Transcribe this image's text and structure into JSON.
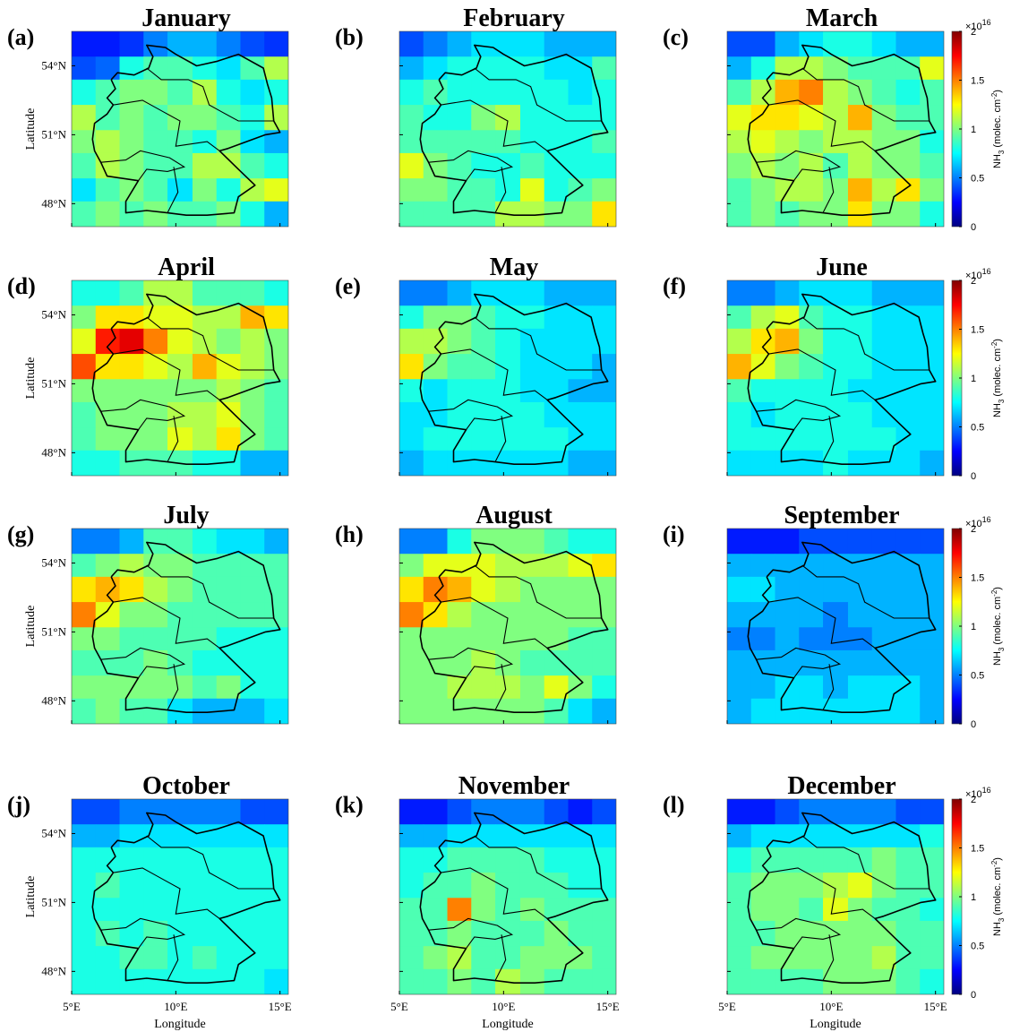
{
  "chart_data": {
    "type": "heatmap",
    "colormap": "jet",
    "clim": [
      0,
      2
    ],
    "x_bins": [
      5,
      6.15,
      7.3,
      8.45,
      9.6,
      10.8,
      11.95,
      13.1,
      14.25,
      15.4
    ],
    "y_bins": [
      47,
      48.1,
      49.1,
      50.2,
      51.2,
      52.3,
      53.4,
      54.4,
      55.5
    ],
    "xlim": [
      5,
      15.4
    ],
    "ylim": [
      47,
      55.5
    ],
    "xticks": [
      {
        "value": 5,
        "label": "5°E"
      },
      {
        "value": 10,
        "label": "10°E"
      },
      {
        "value": 15,
        "label": "15°E"
      }
    ],
    "yticks": [
      {
        "value": 48,
        "label": "48°N"
      },
      {
        "value": 51,
        "label": "51°N"
      },
      {
        "value": 54,
        "label": "54°N"
      }
    ],
    "xlabel": "Longitude",
    "ylabel": "Latitude",
    "colorbar": {
      "ticks": [
        0,
        0.5,
        1,
        1.5,
        2
      ],
      "exponent_base": "×10",
      "exponent": "16",
      "label_parts": [
        "NH",
        "3",
        " (molec. cm",
        "-2",
        ")"
      ]
    },
    "panels": [
      {
        "label": "(a)",
        "title": "January",
        "values": [
          [
            0.3,
            0.3,
            0.35,
            0.5,
            0.6,
            0.6,
            0.5,
            0.4,
            0.35
          ],
          [
            0.4,
            0.45,
            0.8,
            0.9,
            0.9,
            0.8,
            0.7,
            0.9,
            1.1
          ],
          [
            0.8,
            0.9,
            1.0,
            1.0,
            0.9,
            1.1,
            0.8,
            0.7,
            0.8
          ],
          [
            1.1,
            0.9,
            1.0,
            0.9,
            1.0,
            1.0,
            0.9,
            0.8,
            1.1
          ],
          [
            1.0,
            1.1,
            1.0,
            0.9,
            0.9,
            0.8,
            1.0,
            0.7,
            0.6
          ],
          [
            0.9,
            1.1,
            1.0,
            0.9,
            0.9,
            1.1,
            1.1,
            0.9,
            0.8
          ],
          [
            0.7,
            0.9,
            1.0,
            0.9,
            0.7,
            1.0,
            0.8,
            1.1,
            1.2
          ],
          [
            0.9,
            1.0,
            0.9,
            1.0,
            0.9,
            0.9,
            1.0,
            0.8,
            0.6
          ]
        ]
      },
      {
        "label": "(b)",
        "title": "February",
        "values": [
          [
            0.4,
            0.5,
            0.6,
            0.7,
            0.7,
            0.7,
            0.6,
            0.6,
            0.6
          ],
          [
            0.6,
            0.7,
            0.8,
            0.8,
            0.8,
            0.8,
            0.7,
            0.7,
            0.9
          ],
          [
            0.8,
            0.9,
            0.8,
            0.8,
            0.8,
            0.8,
            0.8,
            0.7,
            0.8
          ],
          [
            0.9,
            0.8,
            0.8,
            1.0,
            1.1,
            0.8,
            0.8,
            0.8,
            0.8
          ],
          [
            0.9,
            0.9,
            0.9,
            0.9,
            0.9,
            0.8,
            0.8,
            0.8,
            0.9
          ],
          [
            1.2,
            1.0,
            0.9,
            0.8,
            0.8,
            0.9,
            0.8,
            0.8,
            0.8
          ],
          [
            1.0,
            1.0,
            0.9,
            0.9,
            0.8,
            1.2,
            0.8,
            0.9,
            1.0
          ],
          [
            0.9,
            0.9,
            0.9,
            0.9,
            1.1,
            1.1,
            1.0,
            1.0,
            1.3
          ]
        ]
      },
      {
        "label": "(c)",
        "title": "March",
        "values": [
          [
            0.4,
            0.4,
            0.6,
            0.7,
            0.8,
            0.8,
            0.7,
            0.6,
            0.6
          ],
          [
            0.6,
            0.8,
            1.1,
            1.1,
            1.0,
            0.9,
            0.9,
            0.9,
            1.2
          ],
          [
            0.9,
            1.1,
            1.4,
            1.5,
            1.1,
            1.0,
            0.9,
            0.8,
            0.9
          ],
          [
            1.2,
            1.3,
            1.3,
            1.2,
            1.1,
            1.4,
            1.0,
            0.9,
            0.9
          ],
          [
            1.1,
            1.2,
            1.1,
            1.0,
            1.1,
            1.1,
            1.0,
            1.0,
            0.8
          ],
          [
            1.0,
            1.1,
            1.0,
            1.1,
            0.9,
            1.1,
            1.0,
            1.0,
            0.9
          ],
          [
            0.9,
            1.0,
            1.1,
            1.1,
            1.0,
            1.4,
            1.1,
            1.3,
            1.0
          ],
          [
            0.9,
            1.0,
            0.9,
            1.0,
            1.0,
            1.3,
            1.0,
            1.0,
            0.8
          ]
        ]
      },
      {
        "label": "(d)",
        "title": "April",
        "values": [
          [
            0.8,
            0.8,
            0.9,
            1.1,
            1.1,
            0.9,
            0.9,
            0.9,
            0.8
          ],
          [
            1.0,
            1.3,
            1.3,
            1.2,
            1.2,
            1.1,
            1.1,
            1.4,
            1.3
          ],
          [
            1.2,
            1.7,
            1.8,
            1.5,
            1.2,
            1.1,
            1.0,
            1.1,
            1.0
          ],
          [
            1.6,
            1.3,
            1.3,
            1.2,
            1.1,
            1.4,
            1.2,
            1.1,
            1.0
          ],
          [
            1.0,
            1.0,
            1.0,
            1.0,
            1.0,
            1.0,
            1.1,
            1.0,
            0.9
          ],
          [
            0.9,
            1.0,
            1.0,
            1.0,
            1.1,
            1.1,
            1.2,
            1.0,
            0.9
          ],
          [
            0.9,
            1.0,
            1.0,
            1.0,
            1.2,
            1.1,
            1.3,
            1.0,
            0.9
          ],
          [
            0.8,
            0.8,
            0.9,
            0.9,
            0.9,
            0.8,
            0.8,
            0.6,
            0.6
          ]
        ]
      },
      {
        "label": "(e)",
        "title": "May",
        "values": [
          [
            0.5,
            0.5,
            0.6,
            0.7,
            0.7,
            0.7,
            0.6,
            0.6,
            0.6
          ],
          [
            0.8,
            1.0,
            1.0,
            0.9,
            0.8,
            0.8,
            0.7,
            0.7,
            0.7
          ],
          [
            1.1,
            1.1,
            1.0,
            0.9,
            0.8,
            0.7,
            0.7,
            0.7,
            0.7
          ],
          [
            1.3,
            1.0,
            0.9,
            0.9,
            0.8,
            0.7,
            0.7,
            0.7,
            0.6
          ],
          [
            0.8,
            0.7,
            0.8,
            0.8,
            0.8,
            0.7,
            0.7,
            0.6,
            0.6
          ],
          [
            0.7,
            0.7,
            0.8,
            0.8,
            0.8,
            0.8,
            0.7,
            0.7,
            0.7
          ],
          [
            0.7,
            0.8,
            0.8,
            0.8,
            0.8,
            0.8,
            0.8,
            0.7,
            0.7
          ],
          [
            0.6,
            0.7,
            0.7,
            0.7,
            0.7,
            0.7,
            0.7,
            0.6,
            0.6
          ]
        ]
      },
      {
        "label": "(f)",
        "title": "June",
        "values": [
          [
            0.5,
            0.5,
            0.6,
            0.7,
            0.7,
            0.7,
            0.6,
            0.6,
            0.6
          ],
          [
            0.9,
            1.1,
            1.2,
            0.9,
            0.8,
            0.8,
            0.7,
            0.7,
            0.7
          ],
          [
            1.1,
            1.3,
            1.4,
            1.0,
            0.8,
            0.8,
            0.7,
            0.7,
            0.7
          ],
          [
            1.4,
            1.2,
            1.0,
            0.9,
            0.8,
            0.8,
            0.7,
            0.7,
            0.7
          ],
          [
            0.9,
            0.8,
            0.8,
            0.8,
            0.8,
            0.7,
            0.7,
            0.7,
            0.7
          ],
          [
            0.8,
            0.7,
            0.8,
            0.8,
            0.8,
            0.8,
            0.7,
            0.7,
            0.7
          ],
          [
            0.8,
            0.8,
            0.8,
            0.8,
            0.8,
            0.8,
            0.8,
            0.7,
            0.7
          ],
          [
            0.7,
            0.7,
            0.7,
            0.7,
            0.8,
            0.7,
            0.7,
            0.7,
            0.6
          ]
        ]
      },
      {
        "label": "(g)",
        "title": "July",
        "values": [
          [
            0.5,
            0.5,
            0.6,
            0.9,
            0.9,
            0.8,
            0.7,
            0.7,
            0.6
          ],
          [
            0.9,
            1.0,
            1.1,
            1.0,
            1.0,
            0.9,
            0.9,
            0.9,
            0.9
          ],
          [
            1.3,
            1.4,
            1.3,
            1.1,
            1.0,
            0.9,
            0.9,
            0.9,
            0.9
          ],
          [
            1.5,
            1.2,
            1.0,
            1.0,
            0.9,
            0.9,
            0.9,
            0.9,
            0.9
          ],
          [
            1.0,
            1.0,
            0.9,
            0.9,
            0.9,
            0.9,
            0.8,
            0.8,
            0.8
          ],
          [
            0.9,
            0.9,
            0.9,
            1.0,
            0.9,
            0.8,
            0.8,
            0.8,
            0.8
          ],
          [
            1.0,
            1.0,
            1.0,
            1.0,
            1.0,
            0.9,
            1.0,
            0.8,
            0.8
          ],
          [
            0.9,
            1.0,
            0.9,
            0.9,
            0.7,
            0.6,
            0.6,
            0.6,
            0.7
          ]
        ]
      },
      {
        "label": "(h)",
        "title": "August",
        "values": [
          [
            0.5,
            0.5,
            0.8,
            1.0,
            1.0,
            1.0,
            0.9,
            0.8,
            0.8
          ],
          [
            1.0,
            1.2,
            1.2,
            1.2,
            1.1,
            1.1,
            1.1,
            1.2,
            1.3
          ],
          [
            1.3,
            1.5,
            1.4,
            1.2,
            1.1,
            1.0,
            1.0,
            1.0,
            1.0
          ],
          [
            1.5,
            1.3,
            1.1,
            1.0,
            1.0,
            1.0,
            1.0,
            1.0,
            1.0
          ],
          [
            1.0,
            1.0,
            1.0,
            1.0,
            1.0,
            1.0,
            1.0,
            0.9,
            0.9
          ],
          [
            1.0,
            1.0,
            1.0,
            1.1,
            1.0,
            0.9,
            0.9,
            0.9,
            0.9
          ],
          [
            1.0,
            1.0,
            1.1,
            1.1,
            1.1,
            1.0,
            1.2,
            1.0,
            0.8
          ],
          [
            1.0,
            1.0,
            1.0,
            1.0,
            1.0,
            1.0,
            0.9,
            0.7,
            0.6
          ]
        ]
      },
      {
        "label": "(i)",
        "title": "September",
        "values": [
          [
            0.3,
            0.3,
            0.3,
            0.4,
            0.4,
            0.4,
            0.4,
            0.4,
            0.4
          ],
          [
            0.6,
            0.6,
            0.6,
            0.6,
            0.6,
            0.6,
            0.6,
            0.6,
            0.6
          ],
          [
            0.7,
            0.7,
            0.6,
            0.6,
            0.6,
            0.6,
            0.6,
            0.6,
            0.6
          ],
          [
            0.6,
            0.6,
            0.6,
            0.6,
            0.5,
            0.6,
            0.6,
            0.6,
            0.6
          ],
          [
            0.5,
            0.5,
            0.6,
            0.5,
            0.5,
            0.5,
            0.6,
            0.6,
            0.6
          ],
          [
            0.6,
            0.6,
            0.6,
            0.6,
            0.6,
            0.6,
            0.6,
            0.6,
            0.6
          ],
          [
            0.6,
            0.6,
            0.7,
            0.7,
            0.6,
            0.7,
            0.7,
            0.7,
            0.6
          ],
          [
            0.6,
            0.7,
            0.7,
            0.7,
            0.7,
            0.7,
            0.7,
            0.7,
            0.6
          ]
        ]
      },
      {
        "label": "(j)",
        "title": "October",
        "values": [
          [
            0.4,
            0.4,
            0.5,
            0.5,
            0.5,
            0.5,
            0.5,
            0.4,
            0.4
          ],
          [
            0.6,
            0.6,
            0.7,
            0.7,
            0.7,
            0.7,
            0.7,
            0.7,
            0.7
          ],
          [
            0.8,
            0.8,
            0.8,
            0.8,
            0.8,
            0.8,
            0.8,
            0.8,
            0.8
          ],
          [
            0.8,
            0.9,
            0.8,
            0.8,
            0.8,
            0.8,
            0.8,
            0.8,
            0.8
          ],
          [
            0.8,
            0.8,
            0.8,
            0.8,
            0.8,
            0.8,
            0.8,
            0.8,
            0.8
          ],
          [
            0.8,
            0.9,
            0.8,
            0.9,
            0.8,
            0.8,
            0.8,
            0.8,
            0.8
          ],
          [
            0.8,
            0.8,
            0.9,
            0.9,
            0.8,
            0.9,
            0.8,
            0.8,
            0.8
          ],
          [
            0.8,
            0.8,
            0.8,
            0.8,
            0.8,
            0.8,
            0.8,
            0.8,
            0.7
          ]
        ]
      },
      {
        "label": "(k)",
        "title": "November",
        "values": [
          [
            0.3,
            0.3,
            0.4,
            0.5,
            0.5,
            0.5,
            0.4,
            0.3,
            0.4
          ],
          [
            0.6,
            0.6,
            0.7,
            0.7,
            0.7,
            0.7,
            0.7,
            0.7,
            0.7
          ],
          [
            0.8,
            0.8,
            0.9,
            0.9,
            0.9,
            0.9,
            0.8,
            0.8,
            0.8
          ],
          [
            0.8,
            0.9,
            0.9,
            1.0,
            0.9,
            0.9,
            0.9,
            0.8,
            0.8
          ],
          [
            0.9,
            0.9,
            1.5,
            1.0,
            0.9,
            1.0,
            0.9,
            0.9,
            0.9
          ],
          [
            0.9,
            0.9,
            1.0,
            0.9,
            0.9,
            0.9,
            1.0,
            0.9,
            0.9
          ],
          [
            0.9,
            1.0,
            1.1,
            0.9,
            0.9,
            1.0,
            1.0,
            1.0,
            0.9
          ],
          [
            0.9,
            0.9,
            1.0,
            0.9,
            1.1,
            1.0,
            0.9,
            0.9,
            0.9
          ]
        ]
      },
      {
        "label": "(l)",
        "title": "December",
        "values": [
          [
            0.3,
            0.3,
            0.4,
            0.5,
            0.5,
            0.5,
            0.5,
            0.4,
            0.4
          ],
          [
            0.6,
            0.7,
            0.7,
            0.7,
            0.7,
            0.7,
            0.7,
            0.7,
            0.8
          ],
          [
            0.8,
            0.9,
            0.9,
            0.9,
            0.9,
            0.9,
            1.0,
            0.9,
            0.9
          ],
          [
            0.9,
            1.0,
            1.0,
            1.0,
            1.1,
            1.2,
            1.0,
            0.9,
            0.9
          ],
          [
            0.9,
            1.0,
            1.0,
            0.9,
            1.2,
            1.0,
            0.9,
            0.9,
            0.8
          ],
          [
            0.9,
            0.9,
            1.0,
            1.0,
            1.0,
            1.0,
            1.0,
            0.9,
            0.9
          ],
          [
            0.9,
            1.0,
            1.0,
            1.0,
            1.0,
            1.0,
            1.1,
            0.9,
            0.9
          ],
          [
            0.9,
            0.9,
            0.9,
            0.9,
            1.0,
            1.0,
            1.0,
            0.9,
            0.8
          ]
        ]
      }
    ]
  }
}
